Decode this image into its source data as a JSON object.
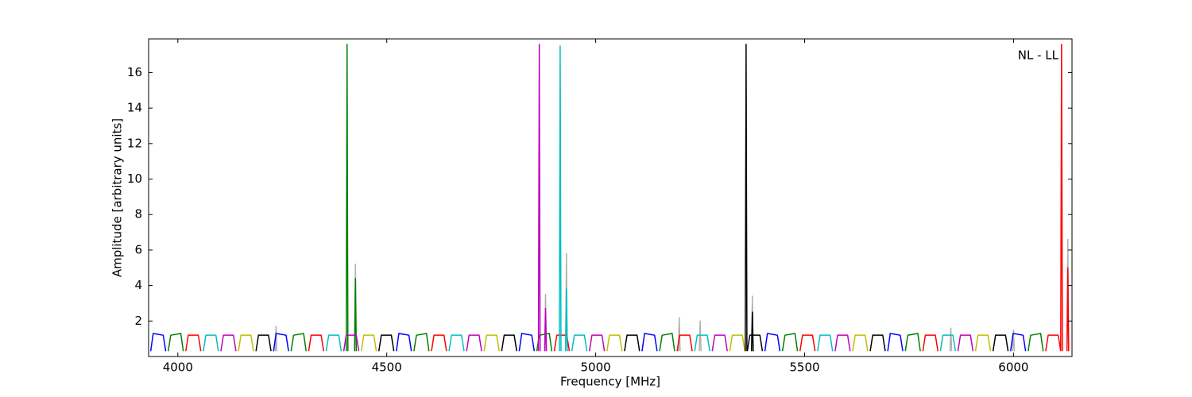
{
  "chart_data": {
    "type": "line",
    "xlabel": "Frequency [MHz]",
    "ylabel": "Amplitude [arbitrary units]",
    "annotation": "NL - LL",
    "xlim": [
      3930,
      6140
    ],
    "ylim": [
      0,
      17.9
    ],
    "xticks": [
      4000,
      4500,
      5000,
      5500,
      6000
    ],
    "yticks": [
      2,
      4,
      6,
      8,
      10,
      12,
      14,
      16
    ],
    "series": [
      {
        "color": "#b0b0b0",
        "x": [
          4233,
          4235,
          4237,
          null,
          4423,
          4425,
          4427,
          null,
          4878,
          4880,
          4882,
          null,
          4928,
          4930,
          4932,
          null,
          5198,
          5200,
          5202,
          null,
          5248,
          5250,
          5252,
          null,
          5373,
          5375,
          5377,
          null,
          5848,
          5850,
          5852,
          null,
          5998,
          6000,
          6002,
          null,
          6128,
          6130,
          6132
        ],
        "values": [
          0.3,
          1.7,
          0.3,
          null,
          0.3,
          5.2,
          0.3,
          null,
          0.3,
          3.5,
          0.3,
          null,
          0.3,
          5.8,
          0.3,
          null,
          0.3,
          2.2,
          0.3,
          null,
          0.3,
          2.0,
          0.3,
          null,
          0.3,
          3.4,
          0.3,
          null,
          0.3,
          1.6,
          0.3,
          null,
          0.3,
          1.5,
          0.3,
          null,
          0.3,
          6.6,
          0.3
        ]
      },
      {
        "color": "#0000ff",
        "x": [
          3935,
          3941,
          3965,
          3971,
          null,
          4229,
          4235,
          4259,
          4265,
          null,
          4523,
          4529,
          4553,
          4559,
          null,
          4817,
          4823,
          4847,
          4853,
          null,
          5111,
          5117,
          5141,
          5147,
          null,
          5405,
          5411,
          5435,
          5441,
          null,
          5699,
          5705,
          5729,
          5735,
          null,
          5993,
          5999,
          6023,
          6029
        ],
        "values": [
          0.3,
          1.3,
          1.2,
          0.3,
          null,
          0.3,
          1.3,
          1.2,
          0.3,
          null,
          0.3,
          1.3,
          1.2,
          0.3,
          null,
          0.3,
          1.3,
          1.2,
          0.3,
          null,
          0.3,
          1.3,
          1.2,
          0.3,
          null,
          0.3,
          1.3,
          1.2,
          0.3,
          null,
          0.3,
          1.3,
          1.2,
          0.3,
          null,
          0.3,
          1.3,
          1.2,
          0.3
        ]
      },
      {
        "color": "#007f00",
        "x": [
          3977,
          3983,
          4007,
          4013,
          null,
          4271,
          4277,
          4301,
          4307,
          null,
          4565,
          4571,
          4595,
          4601,
          null,
          4859,
          4865,
          4889,
          4895,
          null,
          5153,
          5159,
          5183,
          5189,
          null,
          5447,
          5453,
          5477,
          5483,
          null,
          5741,
          5747,
          5771,
          5777,
          null,
          6035,
          6041,
          6065,
          6071,
          null,
          4403,
          4405,
          4407,
          null,
          4423,
          4425,
          4427
        ],
        "values": [
          0.3,
          1.2,
          1.3,
          0.3,
          null,
          0.3,
          1.2,
          1.3,
          0.3,
          null,
          0.3,
          1.2,
          1.3,
          0.3,
          null,
          0.3,
          1.2,
          1.3,
          0.3,
          null,
          0.3,
          1.2,
          1.3,
          0.3,
          null,
          0.3,
          1.2,
          1.3,
          0.3,
          null,
          0.3,
          1.2,
          1.3,
          0.3,
          null,
          0.3,
          1.2,
          1.3,
          0.3,
          null,
          0.3,
          17.6,
          0.3,
          null,
          0.3,
          4.4,
          0.3
        ]
      },
      {
        "color": "#ff0000",
        "x": [
          4019,
          4025,
          4049,
          4055,
          null,
          4313,
          4319,
          4343,
          4349,
          null,
          4607,
          4613,
          4637,
          4643,
          null,
          4901,
          4907,
          4931,
          4937,
          null,
          5195,
          5201,
          5225,
          5231,
          null,
          5489,
          5495,
          5519,
          5525,
          null,
          5783,
          5789,
          5813,
          5819,
          null,
          6077,
          6083,
          6107,
          6113,
          null,
          6113,
          6115,
          6117,
          null,
          6128,
          6130,
          6132
        ],
        "values": [
          0.3,
          1.2,
          1.2,
          0.3,
          null,
          0.3,
          1.2,
          1.2,
          0.3,
          null,
          0.3,
          1.2,
          1.2,
          0.3,
          null,
          0.3,
          1.2,
          1.2,
          0.3,
          null,
          0.3,
          1.2,
          1.2,
          0.3,
          null,
          0.3,
          1.2,
          1.2,
          0.3,
          null,
          0.3,
          1.2,
          1.2,
          0.3,
          null,
          0.3,
          1.2,
          1.2,
          0.3,
          null,
          0.3,
          17.6,
          0.3,
          null,
          0.3,
          5.0,
          0.3
        ]
      },
      {
        "color": "#00bfbf",
        "x": [
          4061,
          4067,
          4091,
          4097,
          null,
          4355,
          4361,
          4385,
          4391,
          null,
          4649,
          4655,
          4679,
          4685,
          null,
          4943,
          4949,
          4973,
          4979,
          null,
          5237,
          5243,
          5267,
          5273,
          null,
          5531,
          5537,
          5561,
          5567,
          null,
          5825,
          5831,
          5855,
          5861,
          null,
          4913,
          4915,
          4917,
          null,
          4928,
          4930,
          4932
        ],
        "values": [
          0.3,
          1.2,
          1.2,
          0.3,
          null,
          0.3,
          1.2,
          1.2,
          0.3,
          null,
          0.3,
          1.2,
          1.2,
          0.3,
          null,
          0.3,
          1.2,
          1.2,
          0.3,
          null,
          0.3,
          1.2,
          1.2,
          0.3,
          null,
          0.3,
          1.2,
          1.2,
          0.3,
          null,
          0.3,
          1.2,
          1.2,
          0.3,
          null,
          0.3,
          17.5,
          0.3,
          null,
          0.3,
          3.8,
          0.3
        ]
      },
      {
        "color": "#bf00bf",
        "x": [
          4103,
          4109,
          4133,
          4139,
          null,
          4397,
          4403,
          4427,
          4433,
          null,
          4691,
          4697,
          4721,
          4727,
          null,
          4985,
          4991,
          5015,
          5021,
          null,
          5279,
          5285,
          5309,
          5315,
          null,
          5573,
          5579,
          5603,
          5609,
          null,
          5867,
          5873,
          5897,
          5903,
          null,
          4863,
          4865,
          4867,
          null,
          4878,
          4880,
          4882
        ],
        "values": [
          0.3,
          1.2,
          1.2,
          0.3,
          null,
          0.3,
          1.2,
          1.2,
          0.3,
          null,
          0.3,
          1.2,
          1.2,
          0.3,
          null,
          0.3,
          1.2,
          1.2,
          0.3,
          null,
          0.3,
          1.2,
          1.2,
          0.3,
          null,
          0.3,
          1.2,
          1.2,
          0.3,
          null,
          0.3,
          1.2,
          1.2,
          0.3,
          null,
          0.3,
          17.6,
          0.3,
          null,
          0.3,
          2.7,
          0.3
        ]
      },
      {
        "color": "#bfbf00",
        "x": [
          4145,
          4151,
          4175,
          4181,
          null,
          4439,
          4445,
          4469,
          4475,
          null,
          4733,
          4739,
          4763,
          4769,
          null,
          5027,
          5033,
          5057,
          5063,
          null,
          5321,
          5327,
          5351,
          5357,
          null,
          5615,
          5621,
          5645,
          5651,
          null,
          5909,
          5915,
          5939,
          5945
        ],
        "values": [
          0.3,
          1.2,
          1.2,
          0.3,
          null,
          0.3,
          1.2,
          1.2,
          0.3,
          null,
          0.3,
          1.2,
          1.2,
          0.3,
          null,
          0.3,
          1.2,
          1.2,
          0.3,
          null,
          0.3,
          1.2,
          1.2,
          0.3,
          null,
          0.3,
          1.2,
          1.2,
          0.3,
          null,
          0.3,
          1.2,
          1.2,
          0.3
        ]
      },
      {
        "color": "#000000",
        "x": [
          4187,
          4193,
          4217,
          4223,
          null,
          4481,
          4487,
          4511,
          4517,
          null,
          4775,
          4781,
          4805,
          4811,
          null,
          5069,
          5075,
          5099,
          5105,
          null,
          5363,
          5369,
          5393,
          5399,
          null,
          5657,
          5663,
          5687,
          5693,
          null,
          5951,
          5957,
          5981,
          5987,
          null,
          5358,
          5360,
          5362,
          null,
          5373,
          5375,
          5377
        ],
        "values": [
          0.3,
          1.2,
          1.2,
          0.3,
          null,
          0.3,
          1.2,
          1.2,
          0.3,
          null,
          0.3,
          1.2,
          1.2,
          0.3,
          null,
          0.3,
          1.2,
          1.2,
          0.3,
          null,
          0.3,
          1.2,
          1.2,
          0.3,
          null,
          0.3,
          1.2,
          1.2,
          0.3,
          null,
          0.3,
          1.2,
          1.2,
          0.3,
          null,
          0.3,
          17.6,
          0.3,
          null,
          0.3,
          2.5,
          0.3
        ]
      }
    ]
  }
}
